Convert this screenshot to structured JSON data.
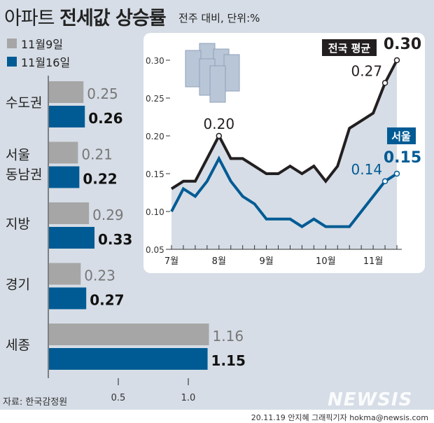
{
  "title": {
    "normal": "아파트",
    "bold": "전세값 상승률",
    "unit": "전주 대비, 단위:%"
  },
  "legend": [
    {
      "label": "11월9일",
      "color": "#a6a6a6"
    },
    {
      "label": "11월16일",
      "color": "#005b94"
    }
  ],
  "source": "자료: 한국감정원",
  "credit": "20.11.19 안지혜 그래픽기자 hokma@newsis.com",
  "logo": "NEWSIS",
  "chart_data": [
    {
      "type": "bar",
      "orientation": "horizontal",
      "categories": [
        "수도권",
        "서울 동남권",
        "지방",
        "경기",
        "세종"
      ],
      "series": [
        {
          "name": "11월9일",
          "values": [
            0.25,
            0.21,
            0.29,
            0.23,
            1.16
          ],
          "color": "#a6a6a6"
        },
        {
          "name": "11월16일",
          "values": [
            0.26,
            0.22,
            0.33,
            0.27,
            1.15
          ],
          "color": "#005b94"
        }
      ],
      "xticks": [
        "0.5",
        "1.0"
      ],
      "xlim": [
        0,
        1.2
      ]
    },
    {
      "type": "line",
      "ylim": [
        0.05,
        0.32
      ],
      "yticks": [
        "0.05",
        "0.10",
        "0.15",
        "0.20",
        "0.25",
        "0.30"
      ],
      "xlabels": [
        {
          "i": 0,
          "label": "7월"
        },
        {
          "i": 4,
          "label": "8월"
        },
        {
          "i": 8,
          "label": "9월"
        },
        {
          "i": 13,
          "label": "10월"
        },
        {
          "i": 17,
          "label": "11월"
        }
      ],
      "series": [
        {
          "name": "전국 평균",
          "color": "#231f20",
          "values": [
            0.13,
            0.14,
            0.14,
            0.17,
            0.2,
            0.17,
            0.17,
            0.16,
            0.15,
            0.15,
            0.16,
            0.15,
            0.16,
            0.14,
            0.16,
            0.21,
            0.22,
            0.23,
            0.27,
            0.3
          ],
          "labels": [
            {
              "i": 4,
              "text": "0.20"
            },
            {
              "i": 18,
              "text": "0.27"
            },
            {
              "i": 19,
              "text": "0.30"
            }
          ]
        },
        {
          "name": "서울",
          "color": "#005b94",
          "values": [
            0.1,
            0.13,
            0.12,
            0.14,
            0.17,
            0.14,
            0.12,
            0.11,
            0.09,
            0.09,
            0.09,
            0.08,
            0.09,
            0.08,
            0.08,
            0.08,
            0.1,
            0.12,
            0.14,
            0.15
          ],
          "labels": [
            {
              "i": 18,
              "text": "0.14"
            },
            {
              "i": 19,
              "text": "0.15"
            }
          ]
        }
      ]
    }
  ]
}
